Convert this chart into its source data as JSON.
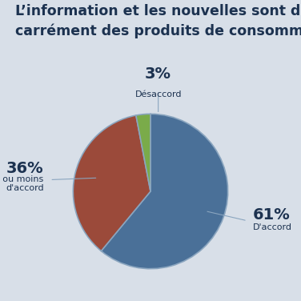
{
  "title_line1": "L’information et les nouvelles sont devenues",
  "title_line2": "carrément des produits de consommation",
  "slices": [
    61,
    36,
    3
  ],
  "labels": [
    "D'accord",
    "Plus ou moins\nd'accord",
    "Désaccord"
  ],
  "percentages": [
    "61%",
    "36%",
    "3%"
  ],
  "colors": [
    "#4a7098",
    "#9b4a3a",
    "#7aab4a"
  ],
  "background_color": "#d8dfe8",
  "title_color": "#1c3250",
  "pct_fontsize": 14,
  "label_fontsize": 8,
  "title_fontsize": 12.5,
  "startangle": 90,
  "pie_edge_color": "#8aa5bf",
  "annotation_line_color": "#8aa5bf"
}
